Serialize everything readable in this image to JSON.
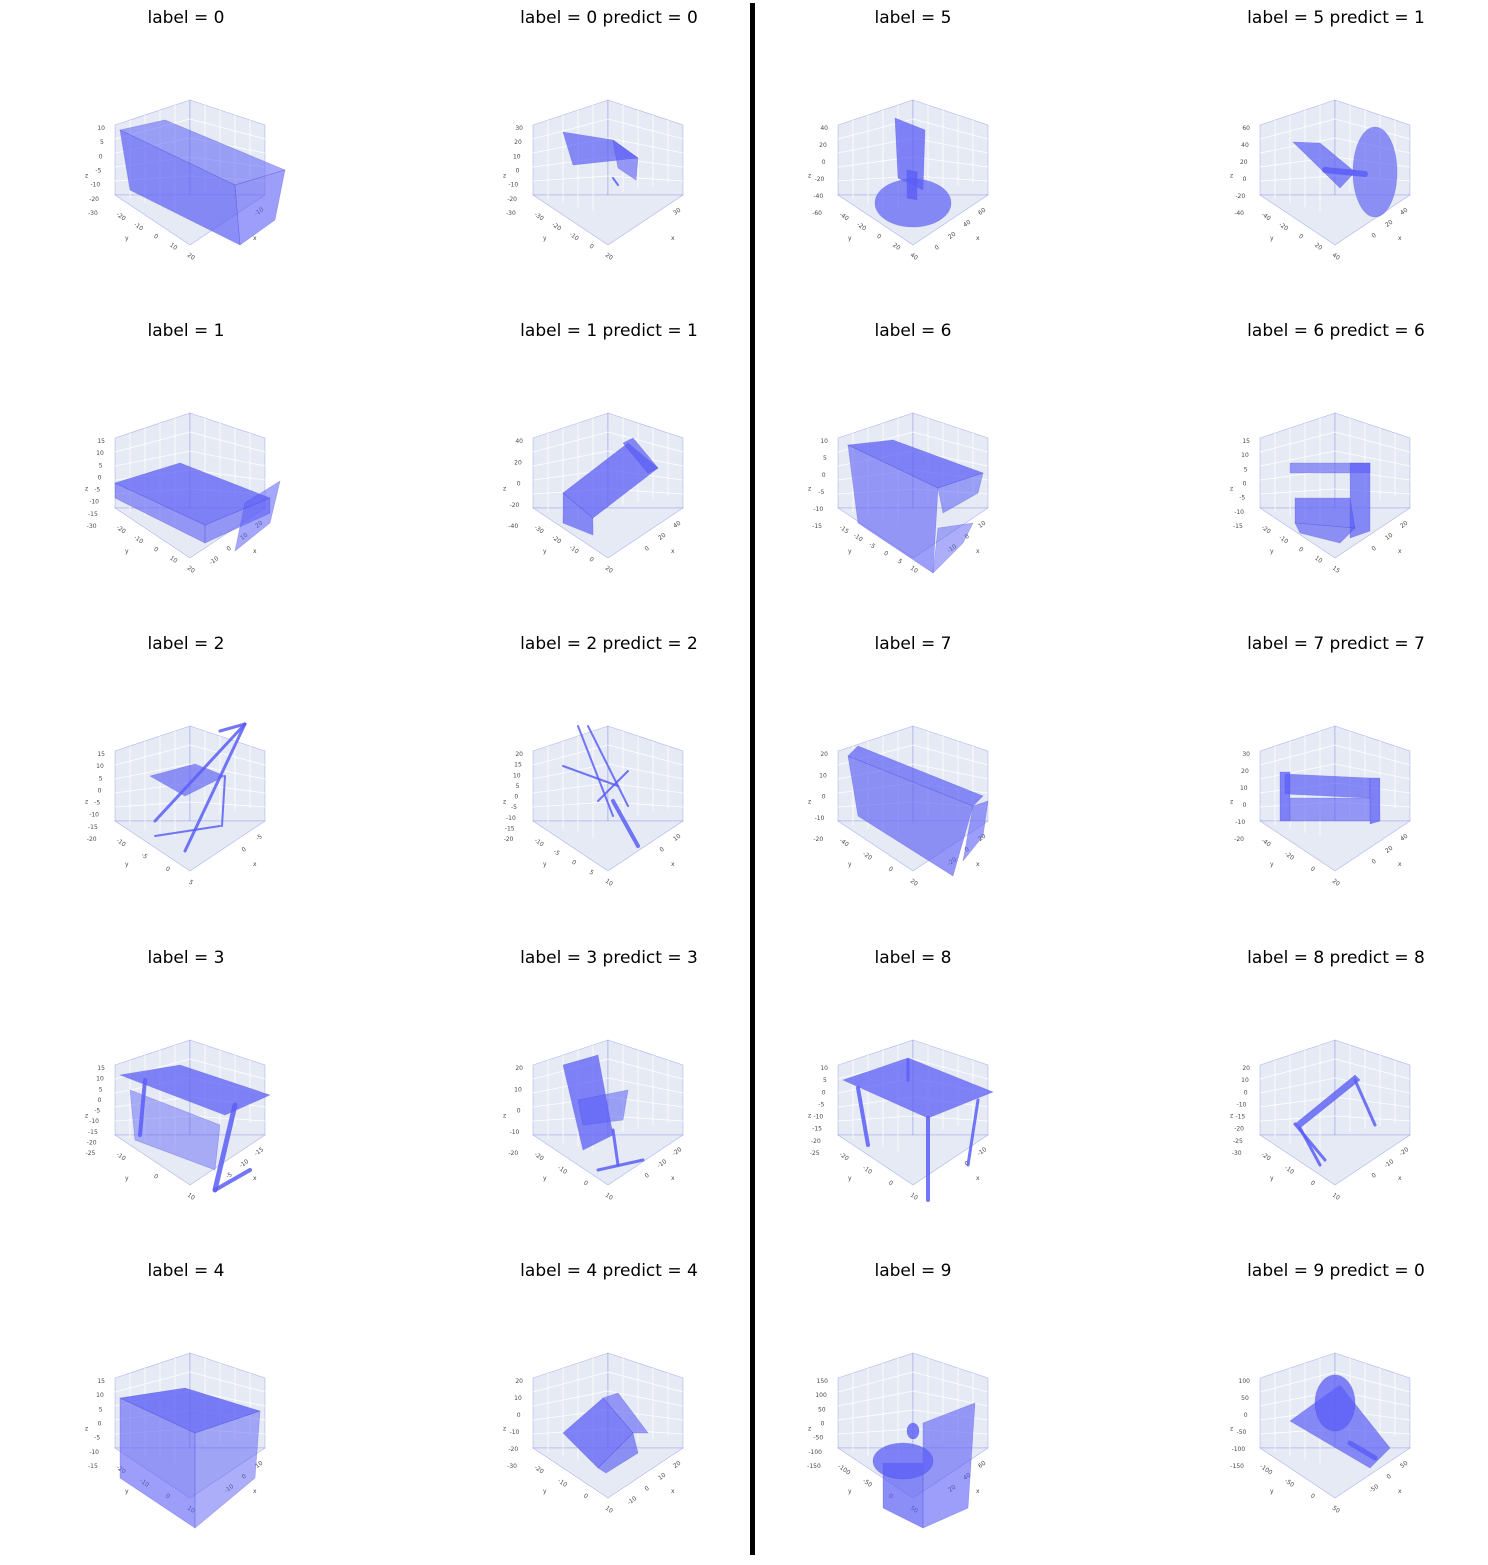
{
  "colors": {
    "mesh": "#5b5ef5",
    "mesh_dark": "#3d40d8",
    "pane": "#e5eaf4",
    "grid": "#ffffff",
    "divider": "#000000"
  },
  "panels": [
    {
      "title": "label = 0",
      "shape": "bathtub",
      "yt": [
        "10",
        "5",
        "0",
        "-5",
        "-10",
        "-20",
        "-30"
      ],
      "xt": [
        "-20",
        "-10",
        "0",
        "10",
        "20"
      ],
      "zt": [
        "-10"
      ]
    },
    {
      "title": "label = 0 predict = 0",
      "shape": "bathtub-small",
      "yt": [
        "30",
        "20",
        "10",
        "0",
        "-10",
        "-20",
        "-30"
      ],
      "xt": [
        "-30",
        "-20",
        "-10",
        "0",
        "20"
      ],
      "zt": [
        "30"
      ]
    },
    {
      "title": "label = 5",
      "shape": "monitor",
      "yt": [
        "40",
        "20",
        "0",
        "-20",
        "-40",
        "-60"
      ],
      "xt": [
        "-40",
        "-20",
        "0",
        "20",
        "40"
      ],
      "zt": [
        "60",
        "40",
        "20",
        "0"
      ]
    },
    {
      "title": "label = 5 predict = 1",
      "shape": "monitor-disc",
      "yt": [
        "60",
        "40",
        "20",
        "0",
        "-20",
        "-40"
      ],
      "xt": [
        "-40",
        "-20",
        "0",
        "20",
        "40"
      ],
      "zt": [
        "40",
        "20",
        "0"
      ]
    },
    {
      "title": "label = 1",
      "shape": "bed",
      "yt": [
        "15",
        "10",
        "5",
        "0",
        "-5",
        "-10",
        "-15",
        "-30"
      ],
      "xt": [
        "-20",
        "-10",
        "0",
        "10",
        "20"
      ],
      "zt": [
        "20",
        "10",
        "0",
        "-10"
      ]
    },
    {
      "title": "label = 1 predict = 1",
      "shape": "bed-tilt",
      "yt": [
        "40",
        "20",
        "0",
        "-20",
        "-40"
      ],
      "xt": [
        "-30",
        "-20",
        "-10",
        "0",
        "20"
      ],
      "zt": [
        "40",
        "20",
        "0"
      ]
    },
    {
      "title": "label = 6",
      "shape": "dresser",
      "yt": [
        "10",
        "5",
        "0",
        "-5",
        "-10",
        "-15"
      ],
      "xt": [
        "-15",
        "-10",
        "-5",
        "0",
        "5",
        "10"
      ],
      "zt": [
        "10",
        "0",
        "-10"
      ]
    },
    {
      "title": "label = 6 predict = 6",
      "shape": "dresser-open",
      "yt": [
        "15",
        "10",
        "5",
        "0",
        "-5",
        "-10",
        "-15"
      ],
      "xt": [
        "-20",
        "-10",
        "0",
        "10",
        "15"
      ],
      "zt": [
        "20",
        "10",
        "0"
      ]
    },
    {
      "title": "label = 2",
      "shape": "chair-fold",
      "yt": [
        "15",
        "10",
        "5",
        "0",
        "-5",
        "-10",
        "-15",
        "-20"
      ],
      "xt": [
        "-10",
        "-5",
        "0",
        "5"
      ],
      "zt": [
        "-5",
        "0"
      ]
    },
    {
      "title": "label = 2 predict = 2",
      "shape": "chair-lines",
      "yt": [
        "20",
        "15",
        "10",
        "5",
        "0",
        "-5",
        "-10",
        "-15",
        "-20"
      ],
      "xt": [
        "-10",
        "-5",
        "0",
        "5",
        "10"
      ],
      "zt": [
        "10",
        "0"
      ]
    },
    {
      "title": "label = 7",
      "shape": "sofa",
      "yt": [
        "20",
        "10",
        "0",
        "-10",
        "-20"
      ],
      "xt": [
        "-40",
        "-20",
        "0",
        "20"
      ],
      "zt": [
        "20",
        "0",
        "-20"
      ]
    },
    {
      "title": "label = 7 predict = 7",
      "shape": "sofa-small",
      "yt": [
        "30",
        "20",
        "10",
        "0",
        "-10",
        "-20"
      ],
      "xt": [
        "-40",
        "-20",
        "0",
        "20"
      ],
      "zt": [
        "40",
        "20",
        "0"
      ]
    },
    {
      "title": "label = 3",
      "shape": "desk",
      "yt": [
        "15",
        "10",
        "5",
        "0",
        "-5",
        "-10",
        "-15",
        "-20",
        "-25"
      ],
      "xt": [
        "-10",
        "0",
        "10"
      ],
      "zt": [
        "-15",
        "-10",
        "-5"
      ]
    },
    {
      "title": "label = 3 predict = 3",
      "shape": "desk-tilt",
      "yt": [
        "20",
        "10",
        "0",
        "-10",
        "-20"
      ],
      "xt": [
        "-20",
        "-10",
        "0",
        "10"
      ],
      "zt": [
        "-20",
        "-10",
        "0"
      ]
    },
    {
      "title": "label = 8",
      "shape": "table",
      "yt": [
        "10",
        "5",
        "0",
        "-5",
        "-10",
        "-15",
        "-20",
        "-25"
      ],
      "xt": [
        "-20",
        "-10",
        "0",
        "10"
      ],
      "zt": [
        "-10",
        "0"
      ]
    },
    {
      "title": "label = 8 predict = 8",
      "shape": "table-tilt",
      "yt": [
        "20",
        "10",
        "0",
        "-10",
        "-15",
        "-20",
        "-25",
        "-30"
      ],
      "xt": [
        "-20",
        "-10",
        "0",
        "10"
      ],
      "zt": [
        "-20",
        "-10",
        "0"
      ]
    },
    {
      "title": "label = 4",
      "shape": "box",
      "yt": [
        "15",
        "10",
        "5",
        "0",
        "-5",
        "-10",
        "-15"
      ],
      "xt": [
        "-20",
        "-10",
        "0",
        "10"
      ],
      "zt": [
        "10",
        "0",
        "-10"
      ]
    },
    {
      "title": "label = 4 predict = 4",
      "shape": "box-tilt",
      "yt": [
        "20",
        "10",
        "0",
        "-10",
        "-20",
        "-30"
      ],
      "xt": [
        "-20",
        "-10",
        "0",
        "10"
      ],
      "zt": [
        "20",
        "10",
        "0",
        "-10"
      ]
    },
    {
      "title": "label = 9",
      "shape": "toilet",
      "yt": [
        "150",
        "100",
        "50",
        "0",
        "-50",
        "-100",
        "-150"
      ],
      "xt": [
        "-100",
        "-50",
        "0",
        "50"
      ],
      "zt": [
        "60",
        "40",
        "20"
      ]
    },
    {
      "title": "label = 9 predict = 0",
      "shape": "toilet-tilt",
      "yt": [
        "100",
        "50",
        "0",
        "-50",
        "-100",
        "-150"
      ],
      "xt": [
        "-100",
        "-50",
        "0",
        "50"
      ],
      "zt": [
        "50",
        "0",
        "-50"
      ]
    }
  ]
}
